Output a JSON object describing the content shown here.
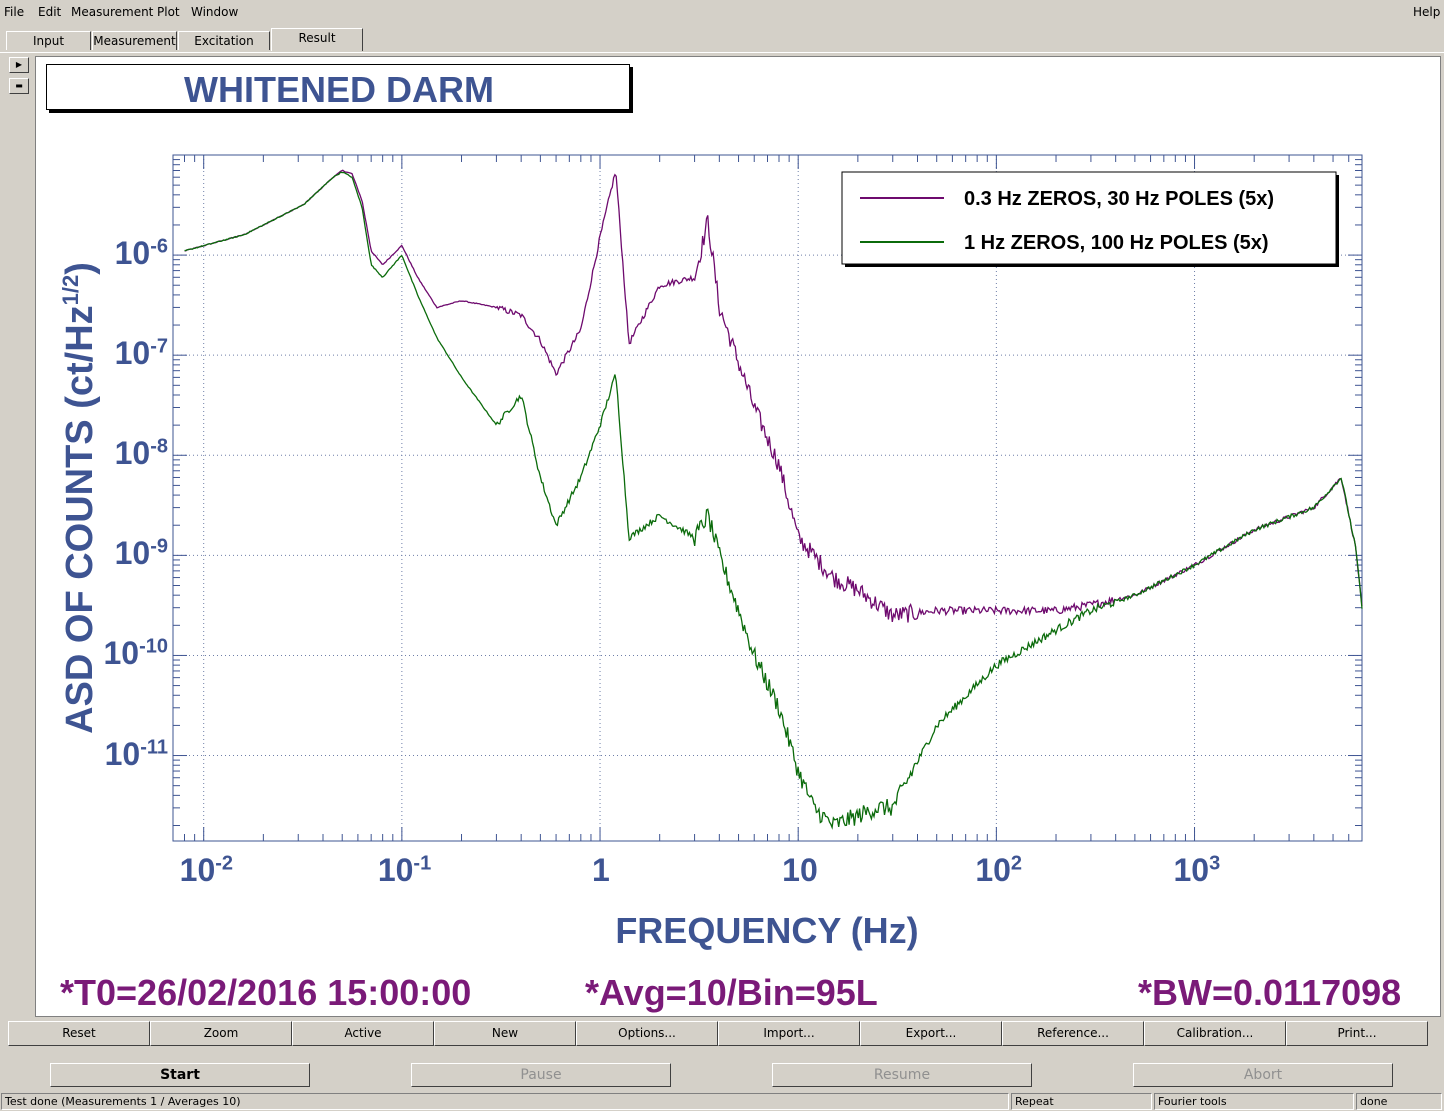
{
  "menu": {
    "file": "File",
    "edit": "Edit",
    "measurement": "Measurement",
    "plot": "Plot",
    "window": "Window",
    "help": "Help"
  },
  "tabs": [
    {
      "label": "Input"
    },
    {
      "label": "Measurement"
    },
    {
      "label": "Excitation"
    },
    {
      "label": "Result"
    }
  ],
  "plot": {
    "title": "WHITENED DARM",
    "ylabel_main": "ASD OF COUNTS (ct/Hz",
    "ylabel_sup": "1/2",
    "ylabel_end": ")",
    "xlabel": "FREQUENCY (Hz)",
    "footer_t0": "*T0=26/02/2016 15:00:00",
    "footer_avg": "*Avg=10/Bin=95L",
    "footer_bw": "*BW=0.0117098",
    "legend": [
      {
        "label": "0.3 Hz ZEROS, 30 Hz POLES (5x)",
        "color": "#6e0a6e"
      },
      {
        "label": "1 Hz ZEROS, 100 Hz POLES (5x)",
        "color": "#0b6b0b"
      }
    ],
    "xticks": [
      {
        "base": "10",
        "exp": "-2"
      },
      {
        "base": "10",
        "exp": "-1"
      },
      {
        "base": "1",
        "exp": ""
      },
      {
        "base": "10",
        "exp": ""
      },
      {
        "base": "10",
        "exp": "2"
      },
      {
        "base": "10",
        "exp": "3"
      }
    ],
    "yticks": [
      {
        "base": "10",
        "exp": "-6"
      },
      {
        "base": "10",
        "exp": "-7"
      },
      {
        "base": "10",
        "exp": "-8"
      },
      {
        "base": "10",
        "exp": "-9"
      },
      {
        "base": "10",
        "exp": "-10"
      },
      {
        "base": "10",
        "exp": "-11"
      }
    ]
  },
  "chart_data": {
    "type": "line",
    "log_x": true,
    "log_y": true,
    "xlim": [
      0.007,
      7000
    ],
    "ylim": [
      1.4e-12,
      1e-05
    ],
    "grid": true,
    "legend_position": "top-right",
    "series": [
      {
        "name": "0.3 Hz ZEROS, 30 Hz POLES (5x)",
        "color": "#6e0a6e",
        "x": [
          0.008,
          0.016,
          0.032,
          0.045,
          0.05,
          0.056,
          0.063,
          0.07,
          0.08,
          0.1,
          0.12,
          0.15,
          0.2,
          0.3,
          0.4,
          0.5,
          0.6,
          0.8,
          1.0,
          1.2,
          1.4,
          2.0,
          3.0,
          3.5,
          4.0,
          6.0,
          8.0,
          10,
          15,
          20,
          30,
          50,
          100,
          200,
          300,
          500,
          1000,
          2000,
          4000,
          5500,
          6500,
          7000
        ],
        "y": [
          1.1e-06,
          1.6e-06,
          3.2e-06,
          6e-06,
          7e-06,
          6.5e-06,
          3.5e-06,
          1.1e-06,
          8e-07,
          1.25e-06,
          6e-07,
          3e-07,
          3.5e-07,
          3e-07,
          2.5e-07,
          1.4e-07,
          6.5e-08,
          1.8e-07,
          1.5e-06,
          7e-06,
          1.3e-07,
          5e-07,
          6e-07,
          2.2e-06,
          3e-07,
          3e-08,
          8e-09,
          1.5e-09,
          6e-10,
          4.5e-10,
          2.5e-10,
          2.8e-10,
          2.8e-10,
          2.8e-10,
          3.2e-10,
          4e-10,
          8e-10,
          1.8e-09,
          3e-09,
          6e-09,
          1.2e-09,
          3e-10
        ]
      },
      {
        "name": "1 Hz ZEROS, 100 Hz POLES (5x)",
        "color": "#0b6b0b",
        "x": [
          0.008,
          0.016,
          0.032,
          0.045,
          0.05,
          0.056,
          0.063,
          0.07,
          0.08,
          0.1,
          0.12,
          0.15,
          0.2,
          0.3,
          0.4,
          0.5,
          0.6,
          0.8,
          1.0,
          1.2,
          1.4,
          2.0,
          3.0,
          3.5,
          4.0,
          6.0,
          8.0,
          10,
          12,
          15,
          20,
          25,
          30,
          50,
          100,
          200,
          300,
          500,
          1000,
          2000,
          4000,
          5500,
          6500,
          7000
        ],
        "y": [
          1.1e-06,
          1.6e-06,
          3.2e-06,
          6e-06,
          6.8e-06,
          6e-06,
          3e-06,
          8e-07,
          6e-07,
          1e-06,
          4e-07,
          1.5e-07,
          6e-08,
          2e-08,
          4e-08,
          6e-09,
          2e-09,
          6e-09,
          2e-08,
          6.5e-08,
          1.5e-09,
          2.5e-09,
          1.5e-09,
          2.5e-09,
          1e-09,
          1e-10,
          3e-11,
          7e-12,
          3e-12,
          2e-12,
          2.5e-12,
          3e-12,
          3e-12,
          2e-11,
          8e-11,
          1.8e-10,
          2.8e-10,
          4e-10,
          8e-10,
          1.8e-09,
          3e-09,
          6e-09,
          1.2e-09,
          3e-10
        ]
      }
    ]
  },
  "buttons": [
    "Reset",
    "Zoom",
    "Active",
    "New",
    "Options...",
    "Import...",
    "Export...",
    "Reference...",
    "Calibration...",
    "Print..."
  ],
  "controls": {
    "start": "Start",
    "pause": "Pause",
    "resume": "Resume",
    "abort": "Abort"
  },
  "status": {
    "message": "Test done (Measurements 1 / Averages 10)",
    "mode": "Repeat",
    "tools": "Fourier tools",
    "state": "done"
  }
}
